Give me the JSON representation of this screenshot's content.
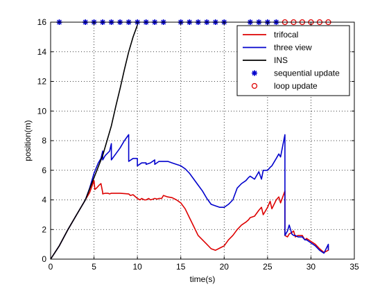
{
  "chart_data": {
    "type": "line",
    "title": "",
    "xlabel": "time(s)",
    "ylabel": "position(m)",
    "xlim": [
      0,
      35
    ],
    "ylim": [
      0,
      16
    ],
    "xticks": [
      0,
      5,
      10,
      15,
      20,
      25,
      30,
      35
    ],
    "yticks": [
      0,
      2,
      4,
      6,
      8,
      10,
      12,
      14,
      16
    ],
    "grid": true,
    "legend_position": "top-right",
    "series": [
      {
        "name": "trifocal",
        "kind": "line",
        "color": "#dd0000",
        "x": [
          0,
          1,
          2,
          3,
          4,
          4.5,
          5,
          5.1,
          5.3,
          5.6,
          5.8,
          6.0,
          6.0,
          6.3,
          6.6,
          6.8,
          7.0,
          8,
          9,
          9.2,
          9.5,
          10,
          10.3,
          10.5,
          10.8,
          11,
          11.3,
          11.5,
          11.8,
          12,
          12.3,
          12.5,
          12.8,
          13,
          13.5,
          14,
          14.5,
          15,
          15.5,
          16,
          16.5,
          17,
          17.5,
          18,
          18.5,
          19,
          19.5,
          20,
          20.5,
          21,
          21.5,
          22,
          22.5,
          22.8,
          23,
          23.5,
          24,
          24.3,
          24.5,
          25,
          25.3,
          25.5,
          26,
          26.3,
          26.5,
          27,
          27.0,
          27.3,
          27.5,
          27.8,
          28,
          28.2,
          28.5,
          29,
          29.3,
          29.5,
          30,
          30.5,
          31,
          31.5,
          32,
          32.0
        ],
        "values": [
          0,
          0.9,
          2.0,
          3.0,
          4.0,
          4.5,
          5.3,
          4.7,
          4.8,
          5.0,
          5.1,
          4.5,
          4.4,
          4.45,
          4.45,
          4.4,
          4.45,
          4.45,
          4.4,
          4.3,
          4.35,
          4.1,
          4.0,
          4.1,
          4.0,
          4.0,
          4.1,
          4.0,
          4.05,
          4.1,
          4.05,
          4.1,
          4.1,
          4.3,
          4.2,
          4.15,
          4.0,
          3.8,
          3.4,
          2.8,
          2.2,
          1.6,
          1.3,
          1.0,
          0.7,
          0.6,
          0.75,
          0.9,
          1.3,
          1.6,
          2.0,
          2.3,
          2.5,
          2.65,
          2.8,
          2.9,
          3.3,
          3.5,
          3.0,
          3.5,
          3.9,
          3.4,
          4.0,
          4.2,
          3.8,
          4.6,
          1.6,
          1.5,
          1.7,
          1.8,
          1.9,
          1.5,
          1.6,
          1.6,
          1.3,
          1.4,
          1.2,
          1.0,
          0.7,
          0.45,
          0.6,
          0.9
        ]
      },
      {
        "name": "three view",
        "kind": "line",
        "color": "#0000cc",
        "x": [
          0,
          1,
          2,
          3,
          4,
          4.5,
          5,
          5.5,
          5.8,
          6.0,
          6.0,
          6.3,
          6.8,
          7.0,
          7.0,
          7.5,
          8,
          8.5,
          9,
          9.0,
          9.5,
          10,
          10.0,
          10.5,
          11,
          11.0,
          11.5,
          12,
          12.0,
          12.5,
          13,
          13.5,
          14,
          14.5,
          15,
          15.5,
          16,
          16.5,
          17,
          17.5,
          18,
          18.5,
          19,
          19.5,
          20,
          20.5,
          21,
          21.5,
          22,
          22.5,
          22.8,
          23,
          23.5,
          24,
          24.3,
          24.5,
          25,
          25.3,
          25.5,
          26,
          26.3,
          26.5,
          27,
          27.0,
          27.3,
          27.5,
          27.8,
          28,
          28.2,
          28.5,
          29,
          29.3,
          29.5,
          30,
          30.5,
          31,
          31.5,
          32,
          32.0
        ],
        "values": [
          0,
          0.9,
          2.0,
          3.0,
          4.0,
          4.8,
          5.8,
          6.5,
          6.8,
          7.3,
          6.7,
          7.0,
          7.3,
          7.8,
          6.7,
          7.1,
          7.5,
          8.0,
          8.4,
          6.6,
          6.8,
          6.8,
          6.3,
          6.5,
          6.5,
          6.4,
          6.5,
          6.7,
          6.4,
          6.6,
          6.6,
          6.6,
          6.5,
          6.4,
          6.3,
          6.1,
          5.8,
          5.4,
          5.0,
          4.6,
          4.1,
          3.7,
          3.6,
          3.5,
          3.5,
          3.7,
          4.0,
          4.8,
          5.1,
          5.3,
          5.5,
          5.6,
          5.4,
          5.9,
          5.4,
          6.0,
          6.0,
          6.2,
          6.3,
          6.8,
          7.1,
          6.9,
          8.4,
          1.6,
          1.9,
          2.3,
          1.7,
          1.6,
          1.6,
          1.5,
          1.5,
          1.3,
          1.3,
          1.1,
          0.9,
          0.6,
          0.4,
          1.0,
          0.6
        ]
      },
      {
        "name": "INS",
        "kind": "line",
        "color": "#000000",
        "x": [
          0,
          1,
          2,
          3,
          4,
          5,
          6,
          7,
          7.5,
          8,
          8.5,
          9,
          9.5,
          10
        ],
        "values": [
          0,
          0.9,
          2.0,
          3.0,
          4.0,
          5.5,
          7.0,
          9.0,
          10.3,
          11.5,
          12.8,
          14.0,
          15.0,
          15.8
        ]
      },
      {
        "name": "sequential update",
        "kind": "marker",
        "marker": "star",
        "color": "#0000cc",
        "x": [
          1,
          4,
          5,
          6,
          7,
          8,
          9,
          10,
          11,
          12,
          13,
          15,
          16,
          17,
          18,
          19,
          20,
          23,
          24,
          25,
          26
        ],
        "values": [
          16,
          16,
          16,
          16,
          16,
          16,
          16,
          16,
          16,
          16,
          16,
          16,
          16,
          16,
          16,
          16,
          16,
          16,
          16,
          16,
          16
        ]
      },
      {
        "name": "loop update",
        "kind": "marker",
        "marker": "circle",
        "color": "#dd0000",
        "x": [
          27,
          28,
          29,
          30,
          31,
          32
        ],
        "values": [
          16,
          16,
          16,
          16,
          16,
          16
        ]
      }
    ]
  }
}
